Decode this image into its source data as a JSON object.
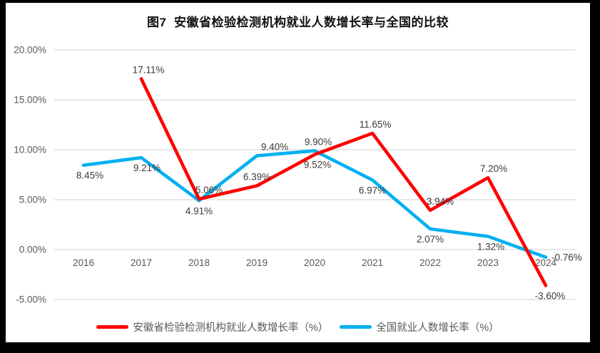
{
  "chart_data": {
    "type": "line",
    "title": "图7  安徽省检验检测机构就业人数增长率与全国的比较",
    "categories": [
      "2016",
      "2017",
      "2018",
      "2019",
      "2020",
      "2021",
      "2022",
      "2023",
      "2024"
    ],
    "series": [
      {
        "name": "安徽省检验检测机构就业人数增长率（%）",
        "color": "#FF0000",
        "values": [
          null,
          17.11,
          5.06,
          6.39,
          9.52,
          11.65,
          3.94,
          7.2,
          -3.6
        ],
        "labels": [
          null,
          "17.11%",
          "5.06%",
          "6.39%",
          "9.52%",
          "11.65%",
          "3.94%",
          "7.20%",
          "-3.60%"
        ],
        "label_pos": [
          null,
          "above",
          "above",
          "above",
          "below",
          "above",
          "above",
          "above",
          "below"
        ],
        "label_dx": [
          0,
          10,
          14,
          0,
          4,
          4,
          14,
          8,
          6
        ]
      },
      {
        "name": "全国就业人数增长率（%）",
        "color": "#00B0F0",
        "values": [
          8.45,
          9.21,
          4.91,
          9.4,
          9.9,
          6.97,
          2.07,
          1.32,
          -0.76
        ],
        "labels": [
          "8.45%",
          "9.21%",
          "4.91%",
          "9.40%",
          "9.90%",
          "6.97%",
          "2.07%",
          "1.32%",
          "-0.76%"
        ],
        "label_pos": [
          "below",
          "below",
          "below",
          "above",
          "above",
          "below",
          "below",
          "below",
          "right"
        ],
        "label_dx": [
          9,
          8,
          0,
          25,
          5,
          0,
          0,
          4,
          8
        ]
      }
    ],
    "ylim": [
      -5,
      20
    ],
    "ytick_values": [
      20,
      15,
      10,
      5,
      0,
      -5
    ],
    "ytick_labels": [
      "20.00%",
      "15.00%",
      "10.00%",
      "5.00%",
      "0.00%",
      "-5.00%"
    ],
    "grid": true,
    "grid_color": "#D9D9D9",
    "legend_position": "bottom"
  }
}
